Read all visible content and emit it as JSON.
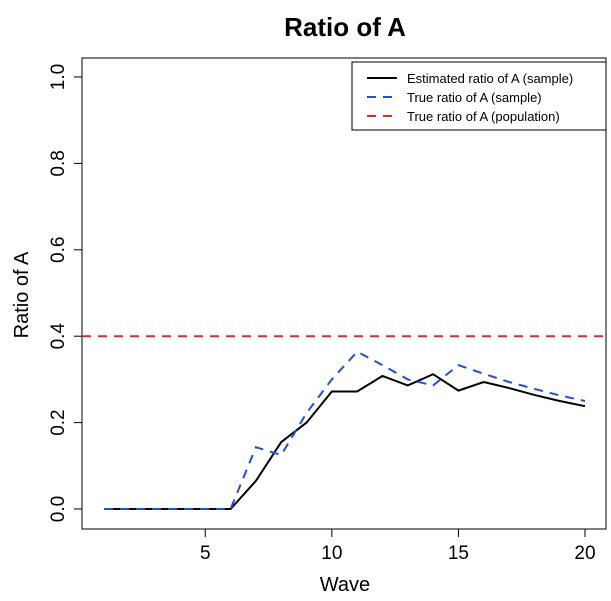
{
  "chart_data": {
    "type": "line",
    "title": "Ratio of A",
    "xlabel": "Wave",
    "ylabel": "Ratio of A",
    "xlim": [
      1,
      20
    ],
    "ylim": [
      0,
      1.0
    ],
    "x_ticks": [
      5,
      10,
      15,
      20
    ],
    "x_tick_labels": [
      "5",
      "10",
      "15",
      "20"
    ],
    "y_ticks": [
      0.0,
      0.2,
      0.4,
      0.6,
      0.8,
      1.0
    ],
    "y_tick_labels": [
      "0.0",
      "0.2",
      "0.4",
      "0.6",
      "0.8",
      "1.0"
    ],
    "grid": false,
    "legend_position": "top-right",
    "x": [
      1,
      2,
      3,
      4,
      5,
      6,
      7,
      8,
      9,
      10,
      11,
      12,
      13,
      14,
      15,
      16,
      17,
      18,
      19,
      20
    ],
    "series": [
      {
        "name": "Estimated ratio of A (sample)",
        "color": "#000000",
        "dash": "solid",
        "values": [
          0.0,
          0.0,
          0.0,
          0.0,
          0.0,
          0.0,
          0.065,
          0.155,
          0.2,
          0.272,
          0.272,
          0.308,
          0.286,
          0.312,
          0.274,
          0.294,
          0.28,
          0.264,
          0.25,
          0.238
        ]
      },
      {
        "name": "True ratio of A (sample)",
        "color": "#1f4fe0",
        "dash": "dashed",
        "values": [
          0.0,
          0.0,
          0.0,
          0.0,
          0.0,
          0.0,
          0.143,
          0.125,
          0.222,
          0.3,
          0.364,
          0.333,
          0.3,
          0.286,
          0.333,
          0.313,
          0.294,
          0.278,
          0.263,
          0.25
        ]
      }
    ],
    "reference_lines": [
      {
        "name": "True ratio of A (population)",
        "color": "#e8281e",
        "dash": "dashed",
        "y": 0.4
      }
    ]
  }
}
